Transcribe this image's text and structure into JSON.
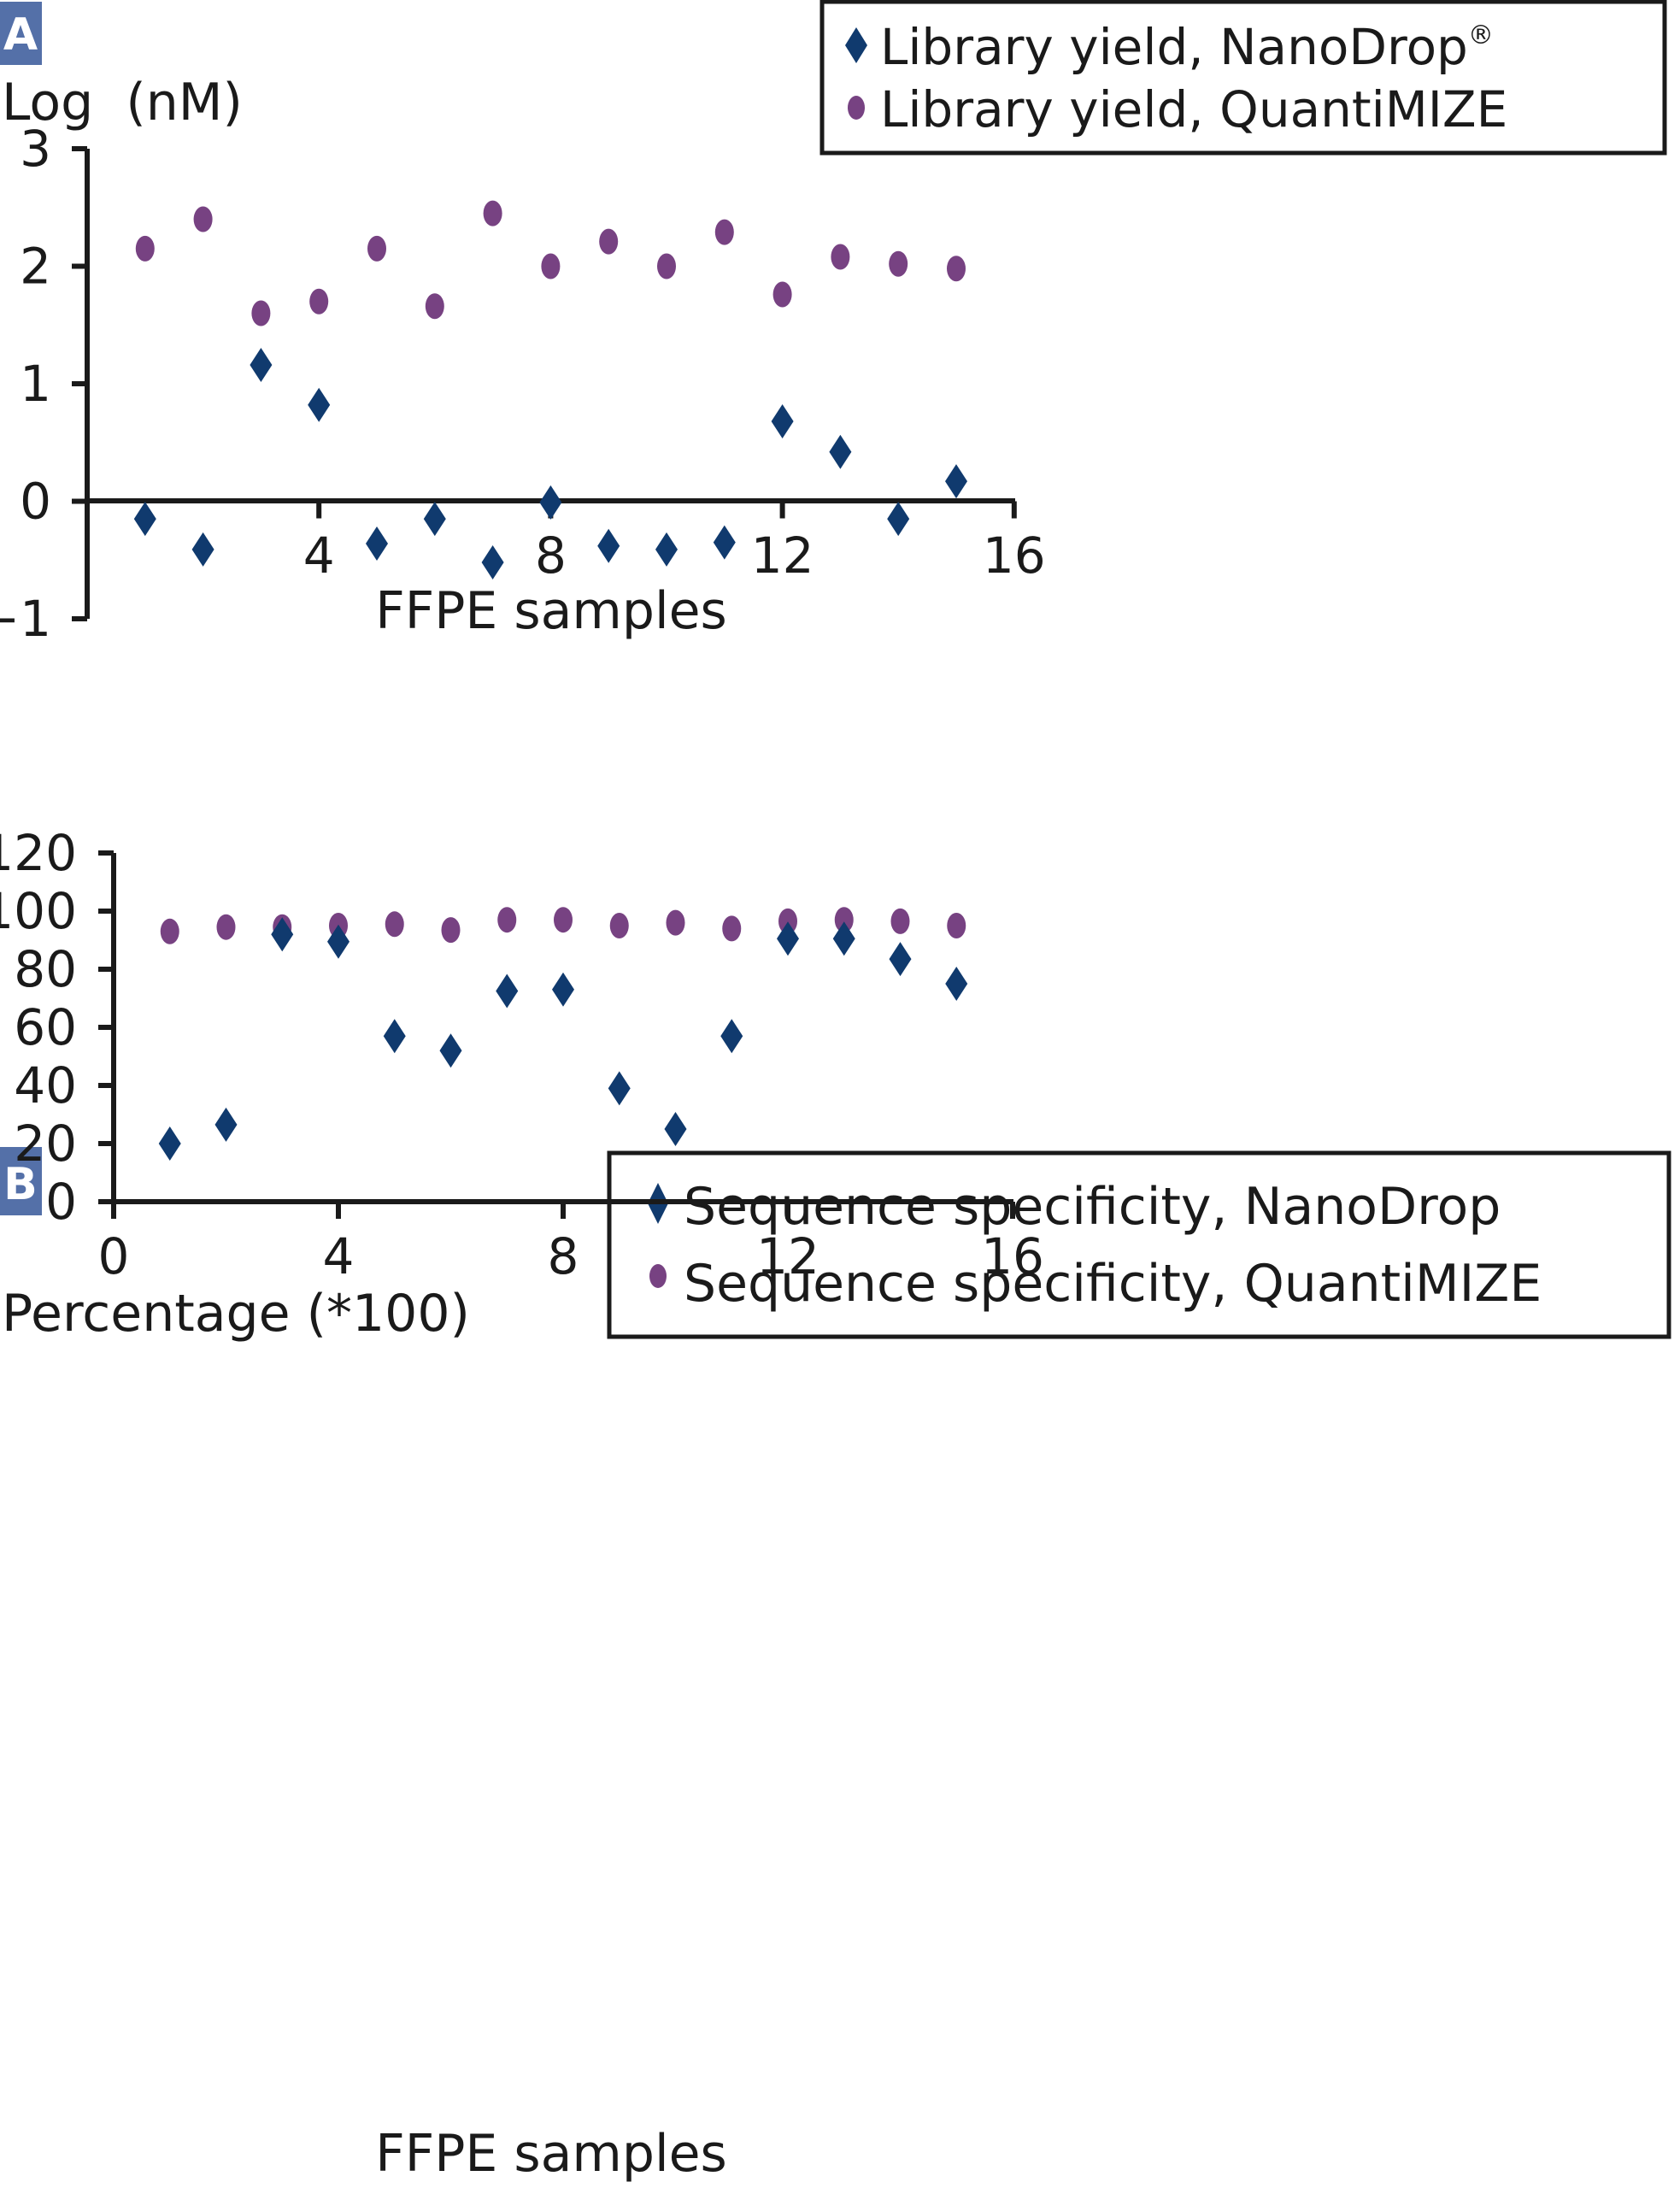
{
  "colors": {
    "nanodrop": "#103a6e",
    "quantimize": "#774282",
    "panel_label_bg": "#5470a8",
    "axis": "#1a1a1a"
  },
  "chart_data": [
    {
      "type": "scatter",
      "panel_label": "A",
      "title": "",
      "ylabel": "Log  (nM)",
      "xlabel": "FFPE samples",
      "xlim": [
        0,
        16
      ],
      "ylim": [
        -1,
        3
      ],
      "x_ticks": [
        4,
        8,
        12,
        16
      ],
      "x_tick_labels": [
        "4",
        "8",
        "12",
        "16"
      ],
      "y_ticks": [
        -1,
        0,
        1,
        2,
        3
      ],
      "y_tick_labels": [
        "−1",
        "0",
        "1",
        "2",
        "3"
      ],
      "x_axis_at_y": 0,
      "grid": false,
      "legend_position": "top-right",
      "legend": [
        {
          "label": "Library yield, NanoDrop",
          "superscript": "®",
          "marker": "diamond",
          "series": 0
        },
        {
          "label": "Library yield, QuantiMIZE",
          "superscript": "",
          "marker": "circle",
          "series": 1
        }
      ],
      "x": [
        1,
        2,
        3,
        4,
        5,
        6,
        7,
        8,
        9,
        10,
        11,
        12,
        13,
        14,
        15
      ],
      "series": [
        {
          "name": "Library yield, NanoDrop",
          "marker": "diamond",
          "values": [
            -0.15,
            -0.41,
            1.16,
            0.82,
            -0.36,
            -0.15,
            -0.52,
            -0.01,
            -0.38,
            -0.41,
            -0.35,
            0.68,
            0.42,
            -0.15,
            0.17
          ]
        },
        {
          "name": "Library yield, QuantiMIZE",
          "marker": "circle",
          "values": [
            2.15,
            2.4,
            1.6,
            1.7,
            2.15,
            1.66,
            2.45,
            2.0,
            2.21,
            2.0,
            2.29,
            1.76,
            2.08,
            2.02,
            1.98
          ]
        }
      ]
    },
    {
      "type": "scatter",
      "panel_label": "B",
      "title": "",
      "ylabel": "Percentage (*100)",
      "xlabel": "FFPE samples",
      "xlim": [
        0,
        16
      ],
      "ylim": [
        0,
        120
      ],
      "x_ticks": [
        0,
        4,
        8,
        12,
        16
      ],
      "x_tick_labels": [
        "0",
        "4",
        "8",
        "12",
        "16"
      ],
      "y_ticks": [
        0,
        20,
        40,
        60,
        80,
        100,
        120
      ],
      "y_tick_labels": [
        "0",
        "20",
        "40",
        "60",
        "80",
        "100",
        "120"
      ],
      "x_axis_at_y": 0,
      "grid": false,
      "legend_position": "top-right",
      "legend": [
        {
          "label": "Sequence specificity, NanoDrop",
          "superscript": "",
          "marker": "diamond",
          "series": 0
        },
        {
          "label": "Sequence specificity, QuantiMIZE",
          "superscript": "",
          "marker": "circle",
          "series": 1
        }
      ],
      "x": [
        1,
        2,
        3,
        4,
        5,
        6,
        7,
        8,
        9,
        10,
        11,
        12,
        13,
        14,
        15
      ],
      "series": [
        {
          "name": "Sequence specificity, NanoDrop",
          "marker": "diamond",
          "values": [
            20,
            26.5,
            92,
            89.5,
            57,
            52,
            72.5,
            73,
            39,
            25,
            57,
            90.5,
            90.5,
            83.5,
            75
          ]
        },
        {
          "name": "Sequence specificity, QuantiMIZE",
          "marker": "circle",
          "values": [
            93,
            94.5,
            94.5,
            95,
            95.5,
            93.5,
            97,
            97,
            95,
            96,
            94,
            96.5,
            97,
            96.5,
            95
          ]
        }
      ]
    }
  ]
}
